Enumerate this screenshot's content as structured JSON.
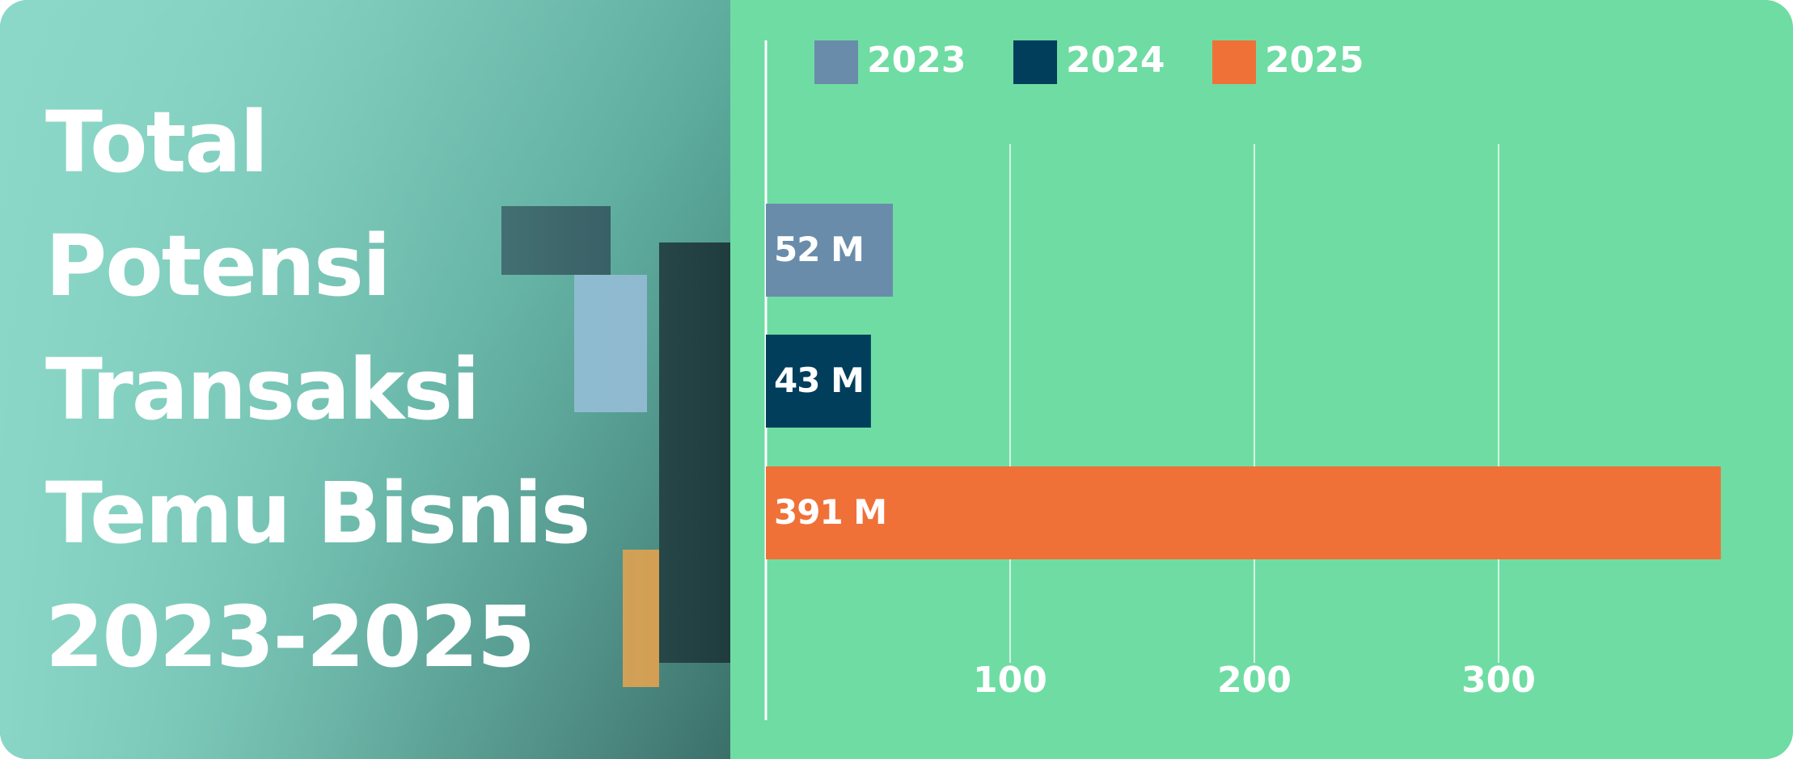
{
  "chart_data": {
    "type": "barh",
    "title": "Total\nPotensi\nTransaksi\nTemu Bisnis\n2023-2025",
    "series": [
      {
        "name": "2023",
        "color": "#6a8cab",
        "values": [
          52
        ],
        "value_labels": [
          "52 M"
        ]
      },
      {
        "name": "2024",
        "color": "#003e5c",
        "values": [
          43
        ],
        "value_labels": [
          "43 M"
        ]
      },
      {
        "name": "2025",
        "color": "#f07137",
        "values": [
          391
        ],
        "value_labels": [
          "391 M"
        ]
      }
    ],
    "xlim": [
      0,
      404
    ],
    "xticks": [
      100,
      200,
      300
    ],
    "grid": true,
    "legend": "top"
  }
}
